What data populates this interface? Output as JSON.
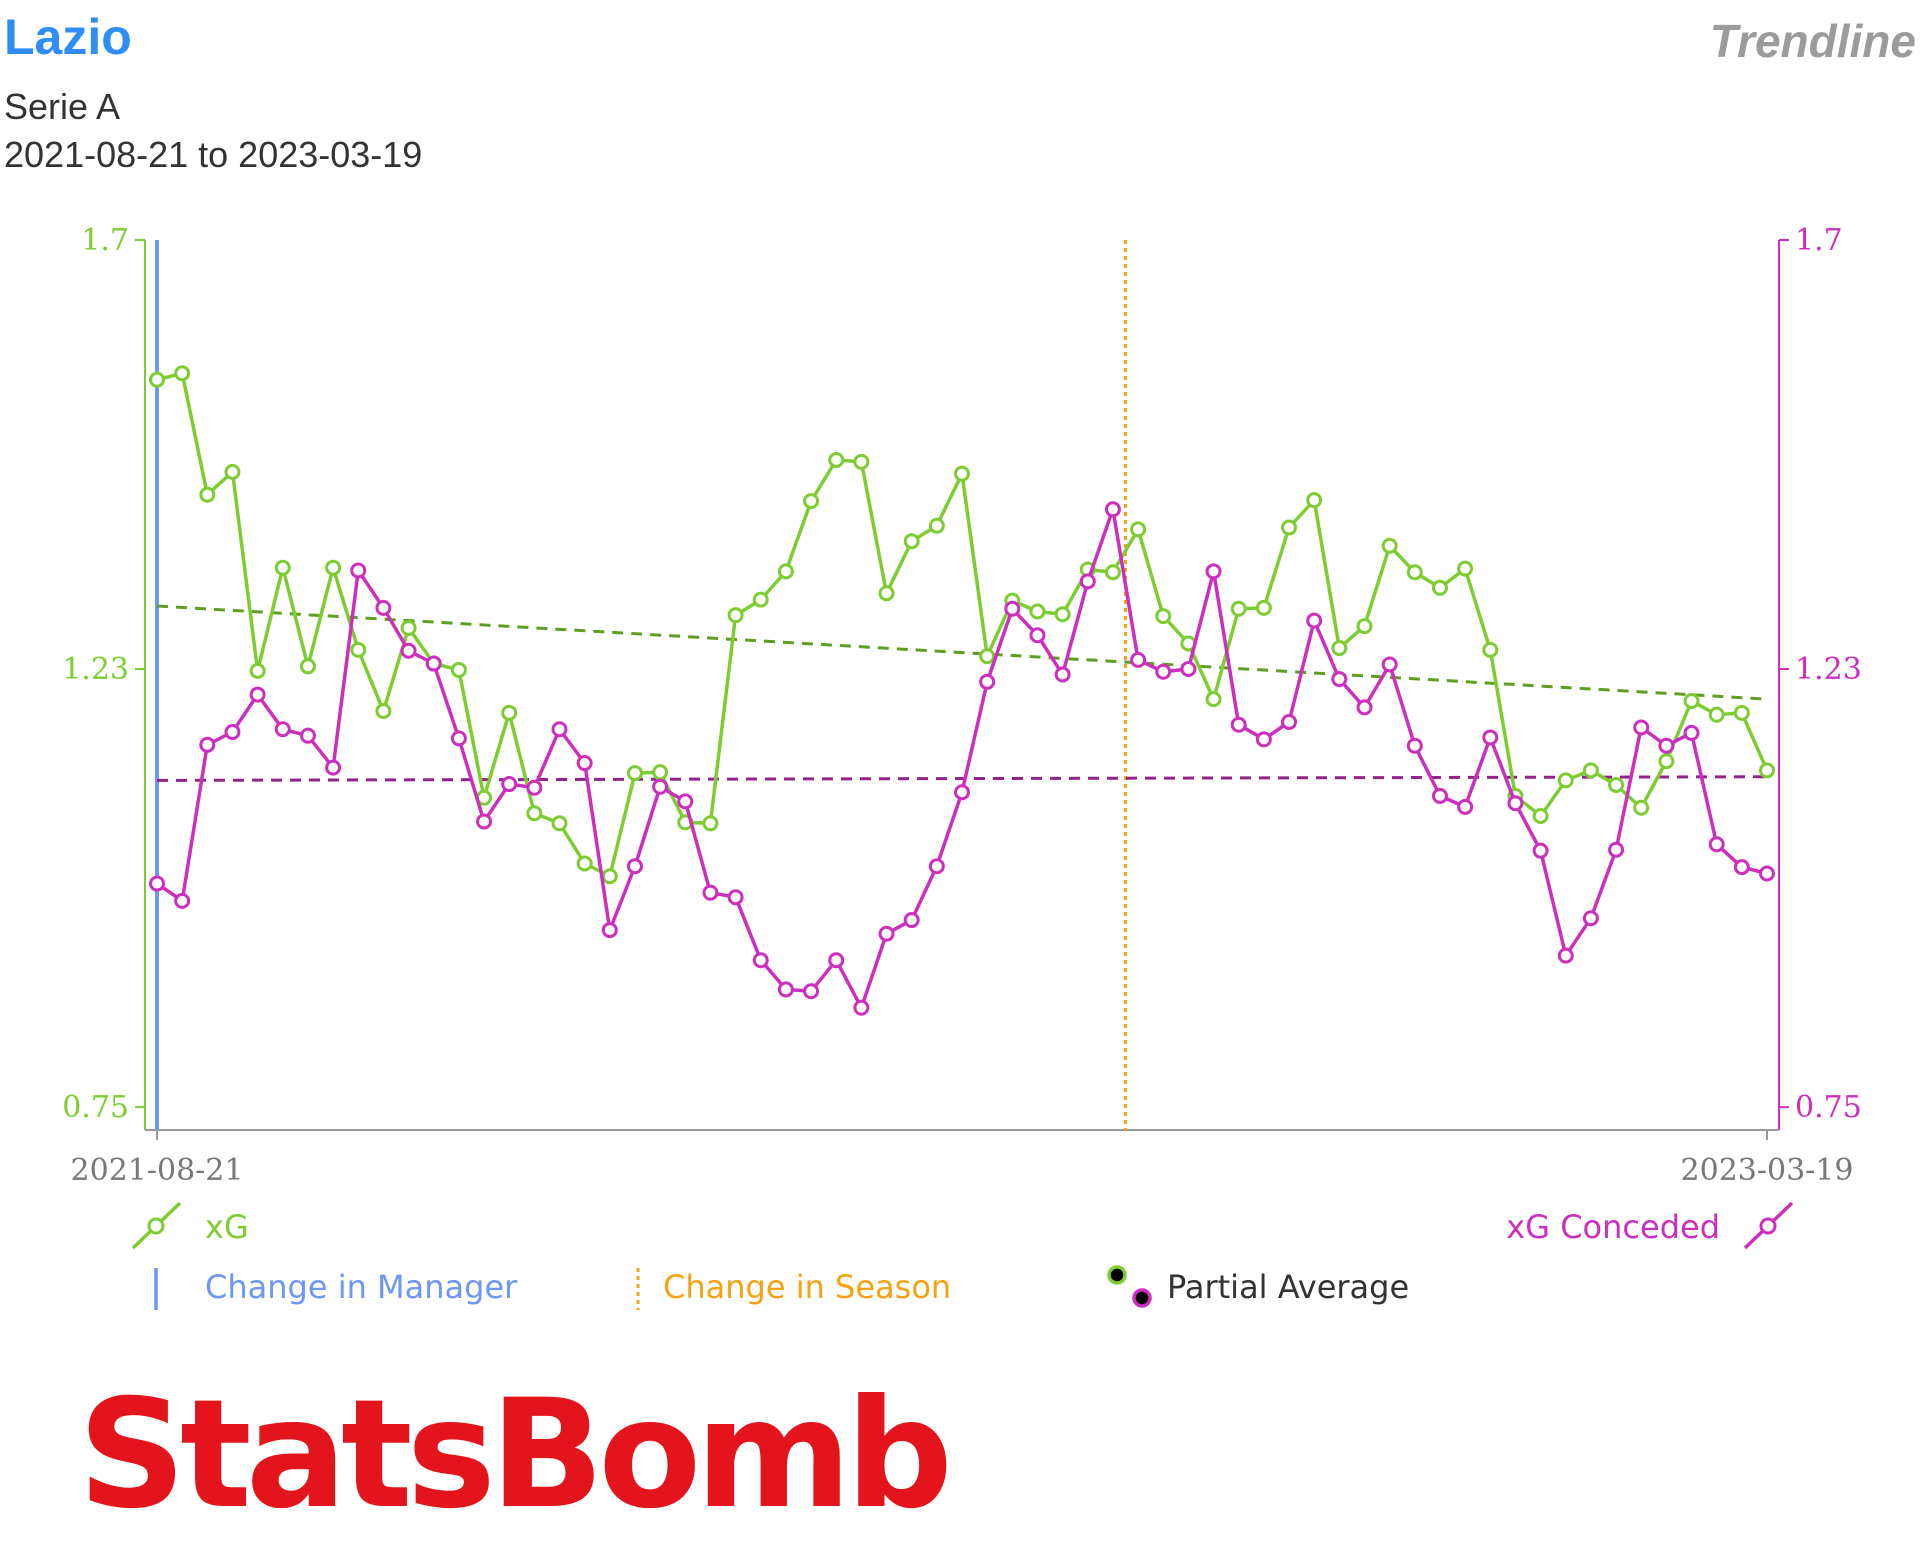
{
  "header": {
    "team": "Lazio",
    "competition": "Serie A",
    "date_range": "2021-08-21 to 2023-03-19",
    "page_kind": "Trendline"
  },
  "colors": {
    "xg": "#7dcd32",
    "xg_conceded": "#cc2fbd",
    "xg_trend": "#5f9e20",
    "xg_conceded_avg": "#93238a",
    "manager_change": "#6d96f5",
    "season_change": "#f5a214",
    "axis": "#999999",
    "brand": "#e4141c",
    "title": "#2e8ef5"
  },
  "chart_data": {
    "type": "line",
    "title": "",
    "xlabel": "",
    "ylabel": "",
    "x_tick_labels": [
      "2021-08-21",
      "2023-03-19"
    ],
    "y_left": {
      "ticks": [
        0.75,
        1.23,
        1.7
      ],
      "tick_labels": [
        "0.75",
        "1.23",
        "1.7"
      ],
      "ylim": [
        0.725,
        1.7
      ]
    },
    "y_right": {
      "ticks": [
        0.75,
        1.23,
        1.7
      ],
      "tick_labels": [
        "0.75",
        "1.23",
        "1.7"
      ],
      "ylim": [
        0.725,
        1.7
      ]
    },
    "series": [
      {
        "name": "xG",
        "axis": "left",
        "values": [
          1.547,
          1.554,
          1.421,
          1.446,
          1.228,
          1.341,
          1.233,
          1.341,
          1.251,
          1.184,
          1.275,
          1.236,
          1.229,
          1.089,
          1.182,
          1.072,
          1.061,
          1.017,
          1.003,
          1.116,
          1.117,
          1.062,
          1.061,
          1.289,
          1.306,
          1.337,
          1.414,
          1.459,
          1.457,
          1.313,
          1.37,
          1.387,
          1.444,
          1.244,
          1.305,
          1.293,
          1.29,
          1.339,
          1.336,
          1.383,
          1.288,
          1.258,
          1.197,
          1.296,
          1.297,
          1.385,
          1.415,
          1.253,
          1.277,
          1.365,
          1.336,
          1.319,
          1.34,
          1.251,
          1.091,
          1.069,
          1.108,
          1.119,
          1.103,
          1.078,
          1.129,
          1.195,
          1.18,
          1.182,
          1.119
        ]
      },
      {
        "name": "xG Conceded",
        "axis": "right",
        "values": [
          0.995,
          0.976,
          1.147,
          1.161,
          1.202,
          1.164,
          1.157,
          1.122,
          1.338,
          1.297,
          1.25,
          1.236,
          1.154,
          1.063,
          1.104,
          1.1,
          1.164,
          1.127,
          0.944,
          1.014,
          1.101,
          1.085,
          0.985,
          0.98,
          0.911,
          0.879,
          0.877,
          0.911,
          0.859,
          0.94,
          0.955,
          1.014,
          1.095,
          1.216,
          1.296,
          1.267,
          1.224,
          1.326,
          1.405,
          1.24,
          1.227,
          1.23,
          1.337,
          1.169,
          1.153,
          1.172,
          1.283,
          1.219,
          1.188,
          1.235,
          1.146,
          1.091,
          1.079,
          1.155,
          1.083,
          1.031,
          0.916,
          0.957,
          1.032,
          1.166,
          1.146,
          1.16,
          1.038,
          1.013,
          1.006
        ]
      }
    ],
    "trend_lines": [
      {
        "series": "xG",
        "style": "dashed",
        "start": 1.299,
        "end": 1.197
      },
      {
        "series": "xG Conceded",
        "style": "dashed",
        "start": 1.108,
        "end": 1.112
      }
    ],
    "markers": [
      {
        "type": "manager_change",
        "style": "solid",
        "at_index": 0
      },
      {
        "type": "season_change",
        "style": "dotted",
        "at_index": 38.5
      }
    ],
    "grid": false,
    "legend": {
      "xg": "xG",
      "xg_conceded": "xG Conceded",
      "manager_change": "Change in Manager",
      "season_change": "Change in Season",
      "partial_average": "Partial Average"
    }
  },
  "logo": {
    "text": "StatsBomb"
  }
}
